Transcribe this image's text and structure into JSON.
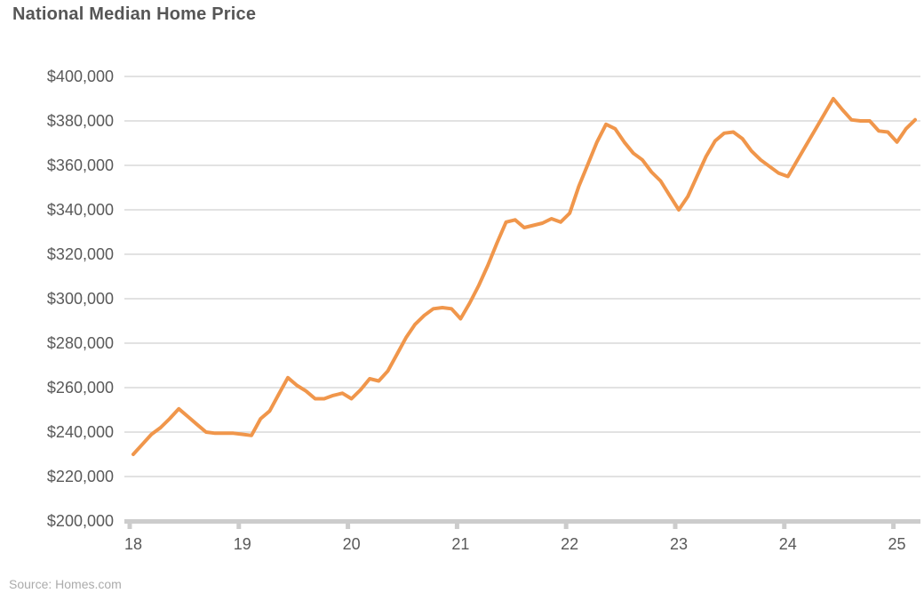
{
  "title": "National Median Home Price",
  "source": "Source: Homes.com",
  "colors": {
    "line": "#F0964B",
    "grid": "#D9D9D9",
    "axis": "#CCCCCC",
    "text": "#595959",
    "title": "#565656",
    "source": "#ABABAB"
  },
  "chart_data": {
    "type": "line",
    "title": "National Median Home Price",
    "x_unit": "month",
    "x_start": "2018-01",
    "x_end": "2025-03",
    "xtick_labels": [
      "18",
      "19",
      "20",
      "21",
      "22",
      "23",
      "24",
      "25"
    ],
    "ytick_values": [
      200000,
      220000,
      240000,
      260000,
      280000,
      300000,
      320000,
      340000,
      360000,
      380000,
      400000
    ],
    "ytick_labels": [
      "$200,000",
      "$220,000",
      "$240,000",
      "$260,000",
      "$280,000",
      "$300,000",
      "$320,000",
      "$340,000",
      "$360,000",
      "$380,000",
      "$400,000"
    ],
    "ylim": [
      200000,
      400000
    ],
    "grid": "horizontal",
    "legend": "none",
    "x": [
      "2018-01",
      "2018-02",
      "2018-03",
      "2018-04",
      "2018-05",
      "2018-06",
      "2018-07",
      "2018-08",
      "2018-09",
      "2018-10",
      "2018-11",
      "2018-12",
      "2019-01",
      "2019-02",
      "2019-03",
      "2019-04",
      "2019-05",
      "2019-06",
      "2019-07",
      "2019-08",
      "2019-09",
      "2019-10",
      "2019-11",
      "2019-12",
      "2020-01",
      "2020-02",
      "2020-03",
      "2020-04",
      "2020-05",
      "2020-06",
      "2020-07",
      "2020-08",
      "2020-09",
      "2020-10",
      "2020-11",
      "2020-12",
      "2021-01",
      "2021-02",
      "2021-03",
      "2021-04",
      "2021-05",
      "2021-06",
      "2021-07",
      "2021-08",
      "2021-09",
      "2021-10",
      "2021-11",
      "2021-12",
      "2022-01",
      "2022-02",
      "2022-03",
      "2022-04",
      "2022-05",
      "2022-06",
      "2022-07",
      "2022-08",
      "2022-09",
      "2022-10",
      "2022-11",
      "2022-12",
      "2023-01",
      "2023-02",
      "2023-03",
      "2023-04",
      "2023-05",
      "2023-06",
      "2023-07",
      "2023-08",
      "2023-09",
      "2023-10",
      "2023-11",
      "2023-12",
      "2024-01",
      "2024-02",
      "2024-03",
      "2024-04",
      "2024-05",
      "2024-06",
      "2024-07",
      "2024-08",
      "2024-09",
      "2024-10",
      "2024-11",
      "2024-12",
      "2025-01",
      "2025-02",
      "2025-03"
    ],
    "series": [
      {
        "name": "National Median Home Price",
        "values": [
          230000,
          234500,
          239000,
          242000,
          246000,
          250500,
          247000,
          243500,
          240000,
          239500,
          239500,
          239500,
          239000,
          238500,
          246000,
          249500,
          257000,
          264500,
          261000,
          258500,
          255000,
          255000,
          256500,
          257500,
          255000,
          259000,
          264000,
          263000,
          267500,
          275000,
          282500,
          288500,
          292500,
          295500,
          296000,
          295500,
          291000,
          298000,
          306000,
          315000,
          325000,
          334500,
          335500,
          332000,
          333000,
          334000,
          336000,
          334500,
          338500,
          350500,
          360500,
          370500,
          378500,
          376500,
          370500,
          365500,
          362500,
          357000,
          353000,
          346500,
          340000,
          346000,
          355000,
          364000,
          371000,
          374500,
          375000,
          372000,
          366500,
          362500,
          359500,
          356500,
          355000,
          362000,
          369000,
          376000,
          383000,
          390000,
          385000,
          380500,
          380000,
          380000,
          375500,
          375000,
          370500,
          376500,
          380500
        ]
      }
    ]
  }
}
